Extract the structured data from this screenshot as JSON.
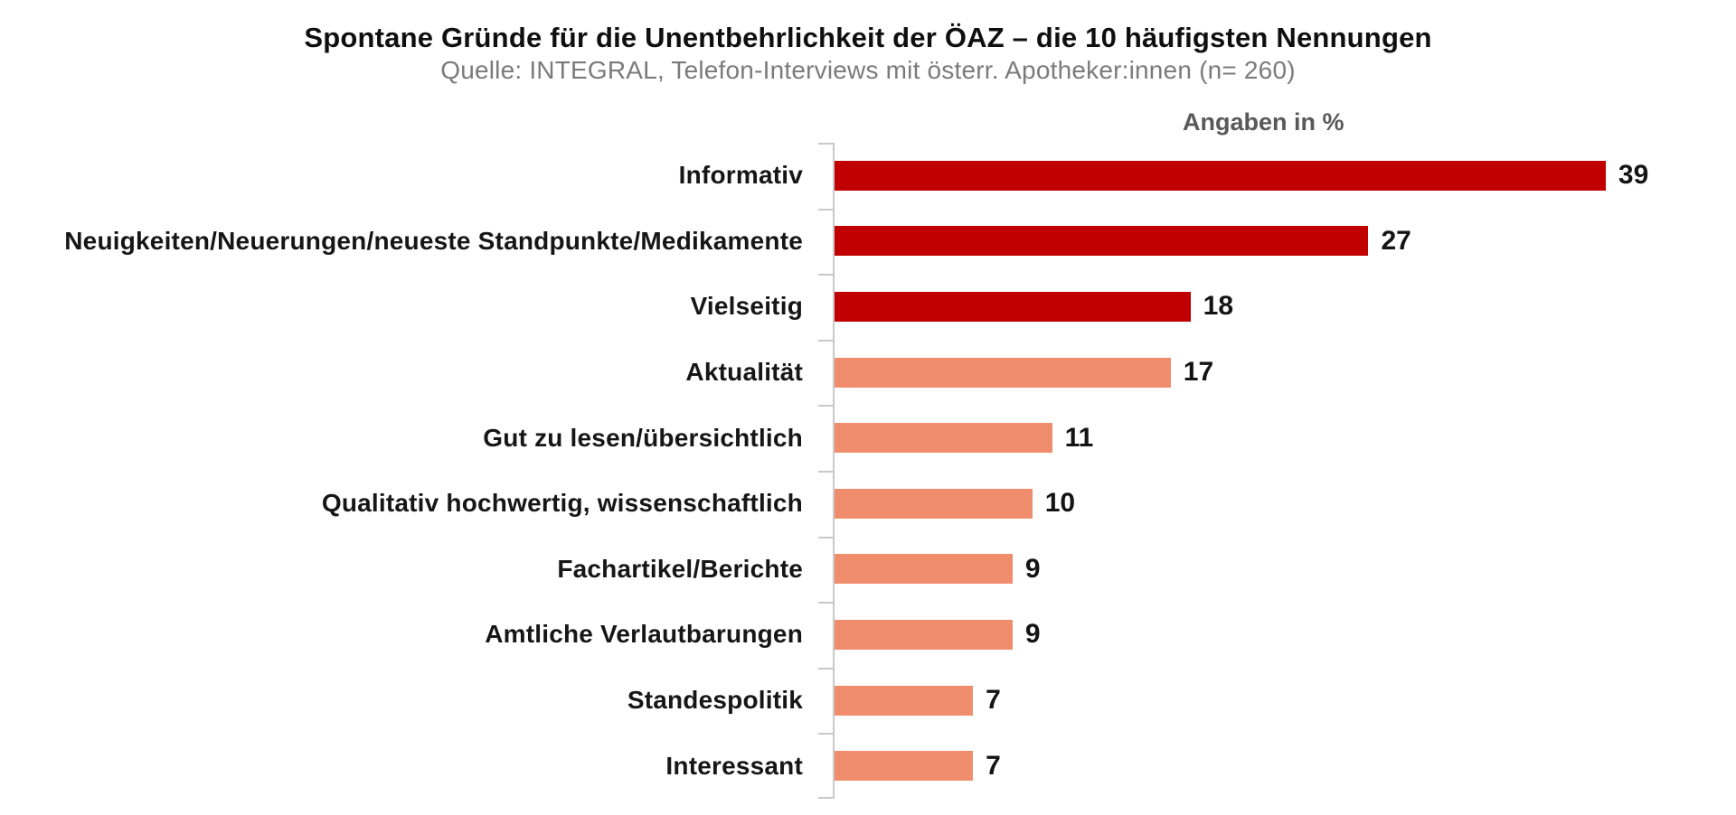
{
  "chart": {
    "title": "Spontane Gründe für die Unentbehrlichkeit der ÖAZ – die 10 häufigsten Nennungen",
    "subtitle": "Quelle: INTEGRAL, Telefon-Interviews mit österr. Apotheker:innen (n= 260)",
    "unit_label": "Angaben in %"
  },
  "chart_data": {
    "type": "bar",
    "orientation": "horizontal",
    "title": "Spontane Gründe für die Unentbehrlichkeit der ÖAZ – die 10 häufigsten Nennungen",
    "subtitle": "Quelle: INTEGRAL, Telefon-Interviews mit österr. Apotheker:innen (n= 260)",
    "unit_label": "Angaben in %",
    "categories": [
      "Informativ",
      "Neuigkeiten/Neuerungen/neueste Standpunkte/Medikamente",
      "Vielseitig",
      "Aktualität",
      "Gut zu lesen/übersichtlich",
      "Qualitativ hochwertig, wissenschaftlich",
      "Fachartikel/Berichte",
      "Amtliche Verlautbarungen",
      "Standespolitik",
      "Interessant"
    ],
    "values": [
      39,
      27,
      18,
      17,
      11,
      10,
      9,
      9,
      7,
      7
    ],
    "bar_colors": [
      "#C00000",
      "#C00000",
      "#C00000",
      "#F08D6D",
      "#F08D6D",
      "#F08D6D",
      "#F08D6D",
      "#F08D6D",
      "#F08D6D",
      "#F08D6D"
    ],
    "colors": {
      "dark_red": "#C00000",
      "salmon": "#F08D6D",
      "axis": "#C9C9C9",
      "label_text": "#161616",
      "subtitle_text": "#7B7B7B",
      "unit_label_text": "#595959"
    },
    "xlim": [
      0,
      44
    ],
    "grid": false,
    "legend": "none",
    "value_labels": "end-of-bar"
  }
}
